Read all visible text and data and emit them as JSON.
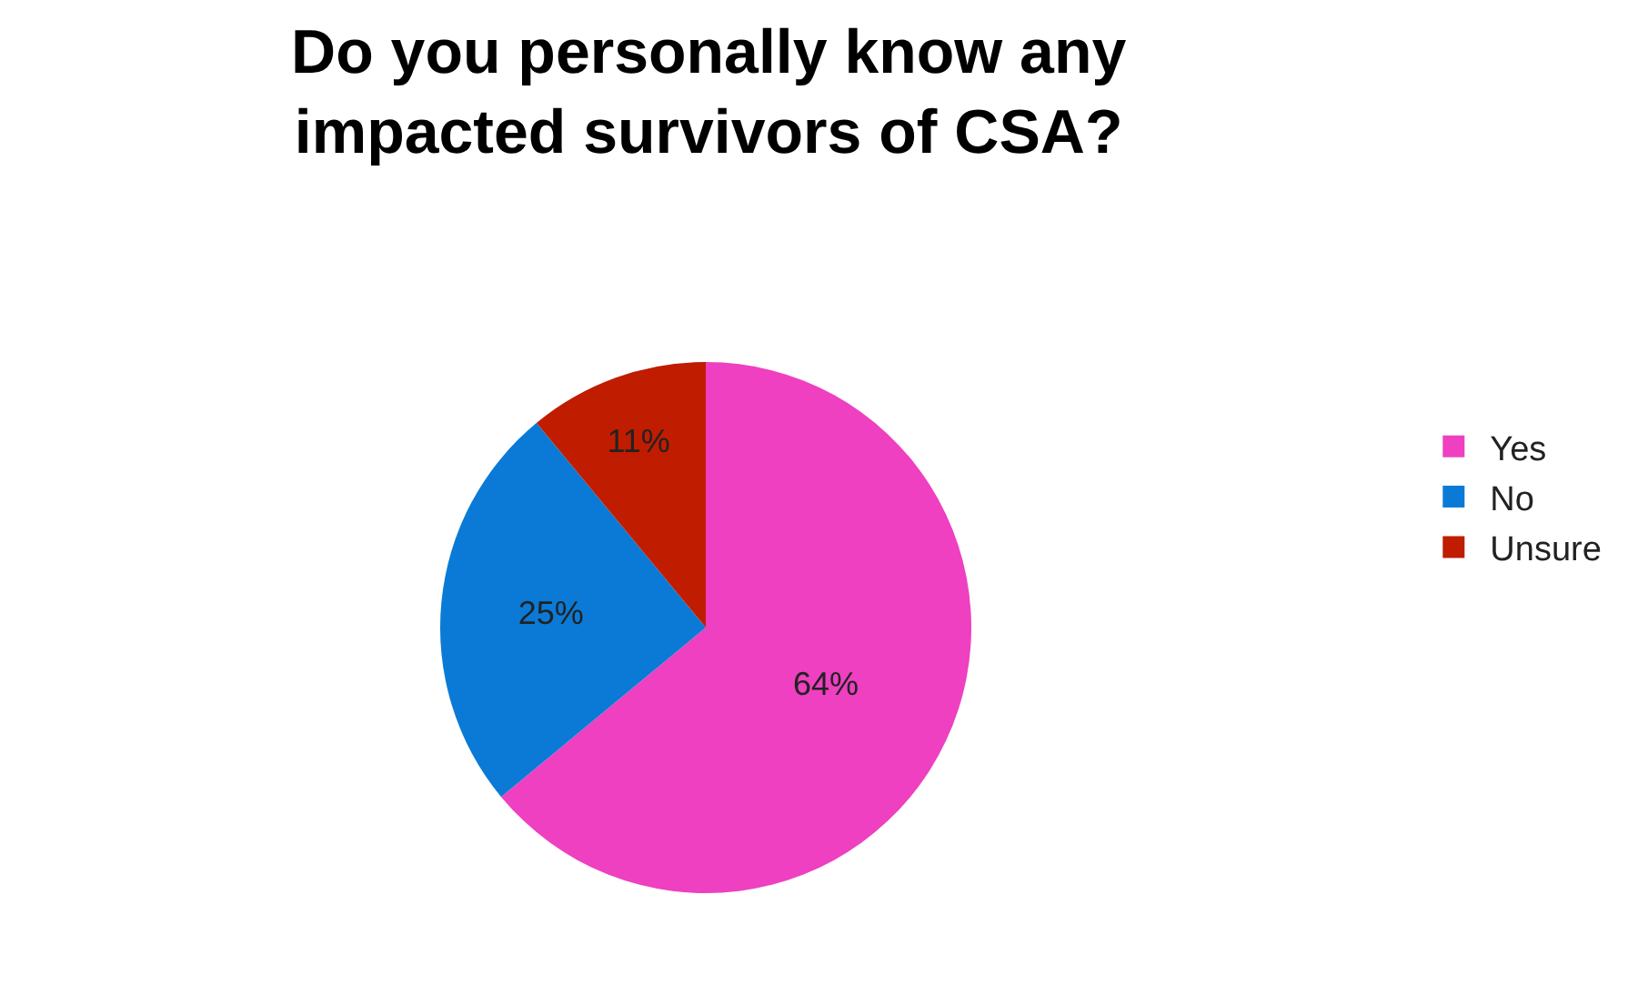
{
  "chart_data": {
    "type": "pie",
    "title": "Do you personally know any\nimpacted survivors of CSA?",
    "categories": [
      "Yes",
      "No",
      "Unsure"
    ],
    "values": [
      64,
      25,
      11
    ],
    "colors": [
      "#ee40c0",
      "#0a7ad6",
      "#c01c00"
    ],
    "value_labels": [
      "64%",
      "25%",
      "11%"
    ],
    "legend": "right"
  }
}
